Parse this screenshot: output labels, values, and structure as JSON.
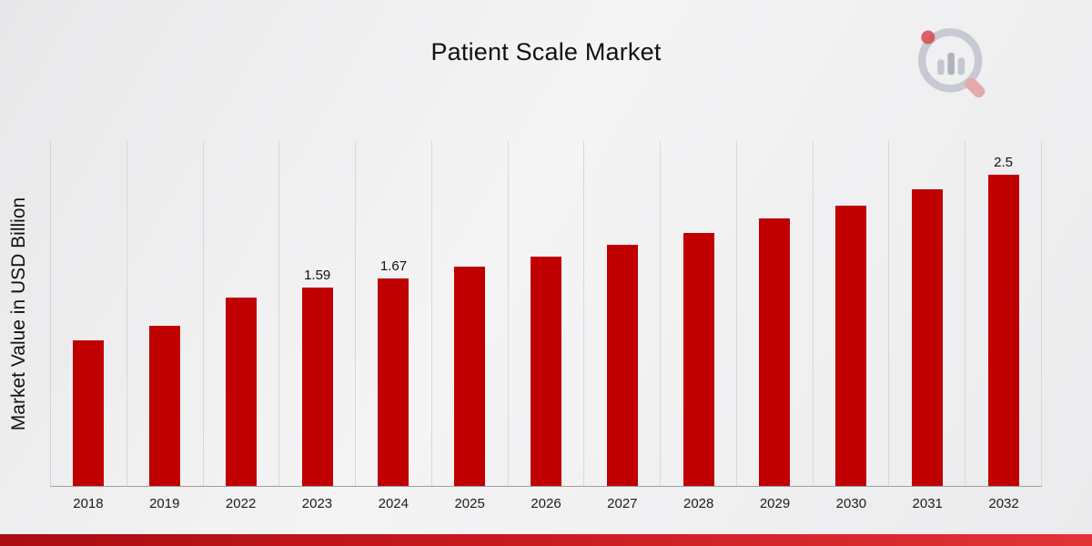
{
  "page": {
    "title": "Patient Scale Market",
    "ylabel": "Market Value in USD Billion"
  },
  "logo": {
    "name": "market-research-brand-logo"
  },
  "colors": {
    "bar_red": "#c00000",
    "stripe_red_dark": "#a90d12",
    "stripe_red_light": "#e23338",
    "gridline": "#d8d8d8",
    "axis_line": "#9e9e9e",
    "background": "#efefef",
    "text": "#111111"
  },
  "chart_data": {
    "type": "bar",
    "title": "Patient Scale Market",
    "xlabel": "",
    "ylabel": "Market Value in USD Billion",
    "categories": [
      "2018",
      "2019",
      "2022",
      "2023",
      "2024",
      "2025",
      "2026",
      "2027",
      "2028",
      "2029",
      "2030",
      "2031",
      "2032"
    ],
    "values": [
      1.17,
      1.29,
      1.51,
      1.59,
      1.67,
      1.76,
      1.84,
      1.94,
      2.03,
      2.15,
      2.25,
      2.38,
      2.5
    ],
    "bar_labels": [
      "",
      "",
      "",
      "1.59",
      "1.67",
      "",
      "",
      "",
      "",
      "",
      "",
      "",
      "2.5"
    ],
    "ylim": [
      0,
      2.77
    ],
    "bar_color": "#c00000",
    "grid": "vertical-only",
    "legend": "none",
    "y_tick_labels_visible": false
  }
}
